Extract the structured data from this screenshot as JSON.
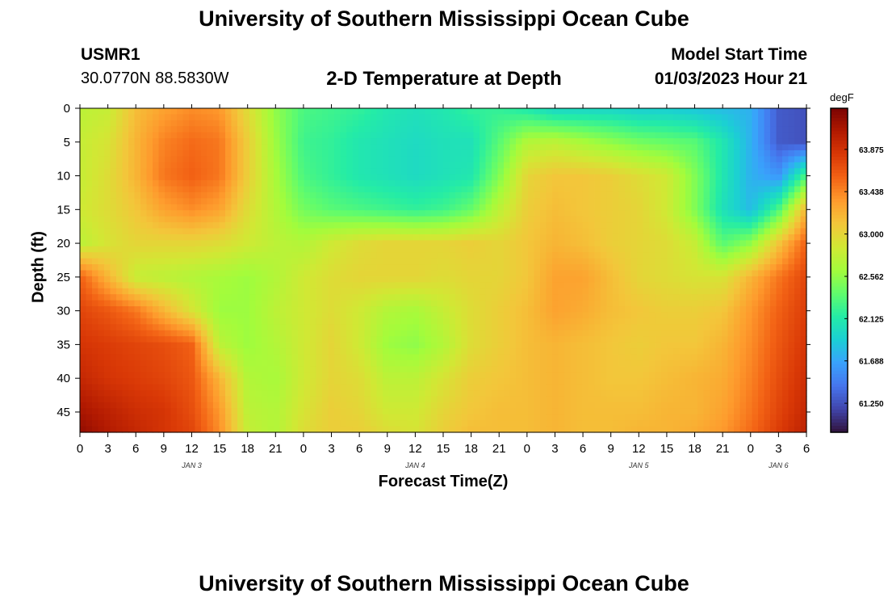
{
  "header": {
    "title": "University of Southern Mississippi Ocean Cube",
    "station_id": "USMR1",
    "station_coords": "30.0770N  88.5830W",
    "plot_title": "2-D Temperature at Depth",
    "model_start_label": "Model Start Time",
    "model_start_value": "01/03/2023 Hour 21"
  },
  "footer": {
    "title": "University of Southern Mississippi Ocean Cube"
  },
  "colors": {
    "colormap": [
      "#30123b",
      "#4145ab",
      "#4675ed",
      "#39a2fc",
      "#1bcfd4",
      "#24eca6",
      "#61fc6c",
      "#a4fc3b",
      "#d1e834",
      "#f3c63a",
      "#fe9b2d",
      "#f36315",
      "#d93806",
      "#b11901",
      "#7a0402"
    ]
  },
  "chart_data": {
    "type": "heatmap",
    "title": "2-D Temperature at Depth",
    "xlabel": "Forecast Time(Z)",
    "ylabel": "Depth (ft)",
    "x_tick_labels": [
      "0",
      "3",
      "6",
      "9",
      "12",
      "15",
      "18",
      "21",
      "0",
      "3",
      "6",
      "9",
      "12",
      "15",
      "18",
      "21",
      "0",
      "3",
      "6",
      "9",
      "12",
      "15",
      "18",
      "21",
      "0",
      "3",
      "6"
    ],
    "x_range_hours": [
      0,
      78
    ],
    "date_labels": [
      {
        "label": "JAN 3",
        "at_hour": 12
      },
      {
        "label": "JAN 4",
        "at_hour": 36
      },
      {
        "label": "JAN 5",
        "at_hour": 60
      },
      {
        "label": "JAN 6",
        "at_hour": 75
      }
    ],
    "y_ticks": [
      0,
      5,
      10,
      15,
      20,
      25,
      30,
      35,
      40,
      45
    ],
    "y_range_ft": [
      0,
      48
    ],
    "y_inverted": true,
    "colorbar": {
      "unit": "degF",
      "tick_labels": [
        "63.875",
        "63.438",
        "63.000",
        "62.562",
        "62.125",
        "61.688",
        "61.250"
      ],
      "range": [
        60.95,
        64.3
      ]
    },
    "field_estimate": {
      "x_hours": [
        0,
        3,
        6,
        9,
        12,
        15,
        18,
        21,
        24,
        27,
        30,
        33,
        36,
        39,
        42,
        45,
        48,
        51,
        54,
        57,
        60,
        63,
        66,
        69,
        72,
        75,
        78
      ],
      "depth_ft": [
        0,
        5,
        10,
        15,
        20,
        25,
        30,
        35,
        40,
        45,
        48
      ],
      "temperature_degF": [
        [
          62.75,
          62.8,
          63.15,
          63.3,
          63.4,
          63.35,
          62.95,
          62.55,
          62.3,
          62.25,
          62.2,
          62.1,
          62.05,
          62.1,
          62.2,
          62.2,
          62.1,
          61.95,
          61.95,
          61.95,
          61.9,
          61.9,
          61.85,
          61.8,
          61.75,
          61.3,
          61.25
        ],
        [
          62.8,
          62.9,
          63.2,
          63.45,
          63.55,
          63.5,
          63.05,
          62.6,
          62.25,
          62.2,
          62.1,
          62.05,
          62.0,
          62.05,
          62.05,
          62.35,
          62.7,
          62.75,
          62.65,
          62.55,
          62.45,
          62.4,
          62.35,
          62.1,
          61.75,
          61.3,
          61.25
        ],
        [
          62.8,
          62.95,
          63.2,
          63.5,
          63.6,
          63.5,
          63.05,
          62.65,
          62.3,
          62.2,
          62.1,
          62.05,
          62.0,
          62.05,
          62.1,
          62.5,
          63.0,
          63.1,
          63.1,
          63.05,
          62.95,
          62.85,
          62.5,
          62.1,
          61.75,
          61.6,
          62.3
        ],
        [
          62.85,
          62.95,
          63.1,
          63.3,
          63.4,
          63.3,
          62.95,
          62.7,
          62.45,
          62.35,
          62.3,
          62.25,
          62.2,
          62.25,
          62.4,
          62.75,
          63.05,
          63.15,
          63.1,
          63.05,
          63.0,
          62.85,
          62.5,
          62.05,
          61.8,
          62.3,
          63.2
        ],
        [
          62.75,
          62.9,
          63.0,
          63.0,
          63.0,
          62.95,
          62.85,
          62.75,
          62.7,
          62.85,
          62.95,
          63.0,
          63.0,
          63.0,
          63.05,
          63.0,
          63.1,
          63.2,
          63.15,
          63.05,
          63.0,
          62.95,
          62.8,
          62.35,
          62.55,
          63.1,
          63.6
        ],
        [
          63.6,
          63.2,
          62.8,
          62.75,
          62.7,
          62.65,
          62.6,
          62.7,
          62.85,
          62.95,
          63.0,
          63.0,
          63.0,
          62.95,
          63.0,
          63.0,
          63.1,
          63.3,
          63.3,
          63.15,
          63.0,
          62.95,
          62.9,
          62.9,
          63.2,
          63.5,
          63.75
        ],
        [
          63.75,
          63.65,
          63.5,
          63.2,
          62.9,
          62.6,
          62.6,
          62.75,
          62.85,
          62.95,
          62.85,
          62.7,
          62.65,
          62.8,
          62.95,
          63.05,
          63.15,
          63.3,
          63.25,
          63.15,
          63.1,
          63.05,
          63.05,
          63.1,
          63.35,
          63.6,
          63.8
        ],
        [
          63.85,
          63.8,
          63.75,
          63.7,
          63.6,
          62.75,
          62.6,
          62.7,
          62.85,
          63.0,
          62.85,
          62.6,
          62.55,
          62.7,
          62.95,
          63.05,
          63.15,
          63.2,
          63.15,
          63.1,
          63.05,
          63.1,
          63.1,
          63.2,
          63.4,
          63.65,
          63.85
        ],
        [
          63.95,
          63.85,
          63.8,
          63.75,
          63.65,
          63.2,
          62.7,
          62.65,
          62.85,
          63.0,
          62.95,
          62.75,
          62.75,
          62.9,
          63.05,
          63.1,
          63.15,
          63.2,
          63.15,
          63.1,
          63.1,
          63.15,
          63.2,
          63.25,
          63.45,
          63.7,
          63.9
        ],
        [
          64.1,
          64.0,
          63.9,
          63.85,
          63.7,
          63.35,
          62.75,
          62.7,
          62.9,
          63.05,
          63.0,
          62.85,
          62.85,
          63.0,
          63.1,
          63.15,
          63.15,
          63.2,
          63.15,
          63.15,
          63.15,
          63.2,
          63.2,
          63.3,
          63.5,
          63.75,
          63.95
        ],
        [
          64.2,
          64.05,
          63.95,
          63.85,
          63.75,
          63.4,
          62.8,
          62.7,
          62.95,
          63.05,
          63.05,
          62.95,
          62.9,
          63.05,
          63.15,
          63.15,
          63.15,
          63.2,
          63.15,
          63.15,
          63.2,
          63.2,
          63.25,
          63.35,
          63.55,
          63.8,
          64.0
        ]
      ]
    }
  }
}
